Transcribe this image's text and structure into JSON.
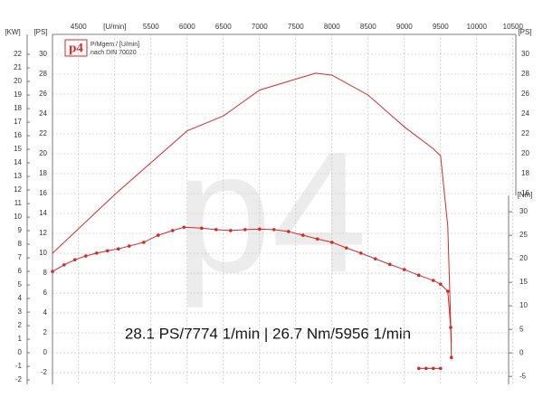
{
  "chart_data": {
    "type": "line",
    "annotation": "28.1 PS/7774 1/min | 26.7 Nm/5956 1/min",
    "logo": {
      "mark": "p4",
      "line1": "P/Mgem / [U/min]",
      "line2": "nach DIN 70020"
    },
    "watermark": "p4",
    "xlim": [
      4140,
      10540
    ],
    "xticks": [
      4500,
      {
        "value": 5000,
        "label": "[U/min]"
      },
      5500,
      6000,
      6500,
      7000,
      7500,
      8000,
      8500,
      9000,
      9500,
      10000,
      10500
    ],
    "y_label": "[PS]",
    "ylim": [
      -3.18,
      32
    ],
    "yticks": [
      -2,
      0,
      2,
      4,
      6,
      8,
      10,
      12,
      14,
      16,
      18,
      20,
      22,
      24,
      26,
      28,
      30
    ],
    "kw_label": "[KW]",
    "kwlim": [
      -2.33,
      23.47
    ],
    "kwticks": [
      -2,
      -1,
      0,
      1,
      2,
      3,
      4,
      5,
      6,
      7,
      8,
      9,
      10,
      11,
      12,
      13,
      14,
      15,
      16,
      17,
      18,
      19,
      20,
      21,
      22
    ],
    "y2_label": "[Nm]",
    "y2lim": [
      -6.7,
      67.7
    ],
    "y2ticks": [
      -5,
      0,
      5,
      10,
      15,
      20,
      25,
      30
    ],
    "grid": true,
    "series": [
      {
        "color": "#d42a2a",
        "markers": false,
        "x": [
          4140,
          5000,
          5500,
          6000,
          6500,
          7000,
          7500,
          7774,
          8000,
          8500,
          9000,
          9400,
          9500,
          9600,
          9640,
          9650
        ],
        "values": [
          10,
          15.9,
          19.1,
          22.3,
          23.8,
          26.4,
          27.5,
          28.1,
          27.9,
          25.9,
          22.7,
          20.5,
          19.8,
          12.7,
          3,
          1
        ]
      },
      {
        "color": "#d42a2a",
        "axis": "y2",
        "markers": true,
        "x": [
          4140,
          4300,
          4450,
          4600,
          4750,
          4900,
          5050,
          5200,
          5400,
          5600,
          5800,
          5956,
          6200,
          6400,
          6600,
          6800,
          7000,
          7200,
          7400,
          7600,
          7800,
          8000,
          8200,
          8400,
          8600,
          8800,
          9000,
          9200,
          9400,
          9500,
          9600,
          9640,
          9650
        ],
        "values": [
          17.3,
          18.7,
          19.8,
          20.6,
          21.2,
          21.7,
          22.1,
          22.7,
          23.5,
          25,
          26,
          26.7,
          26.5,
          26.2,
          26,
          26.2,
          26.3,
          26.2,
          25.8,
          25,
          24.2,
          23.5,
          22.3,
          21.2,
          20,
          18.8,
          17.7,
          16.5,
          15.4,
          14.6,
          13.1,
          5.4,
          -1
        ]
      },
      {
        "color": "#d42a2a",
        "axis": "y2",
        "markers": true,
        "x": [
          9200,
          9300,
          9400,
          9500
        ],
        "values": [
          -3.3,
          -3.3,
          -3.3,
          -3.3
        ]
      }
    ]
  }
}
